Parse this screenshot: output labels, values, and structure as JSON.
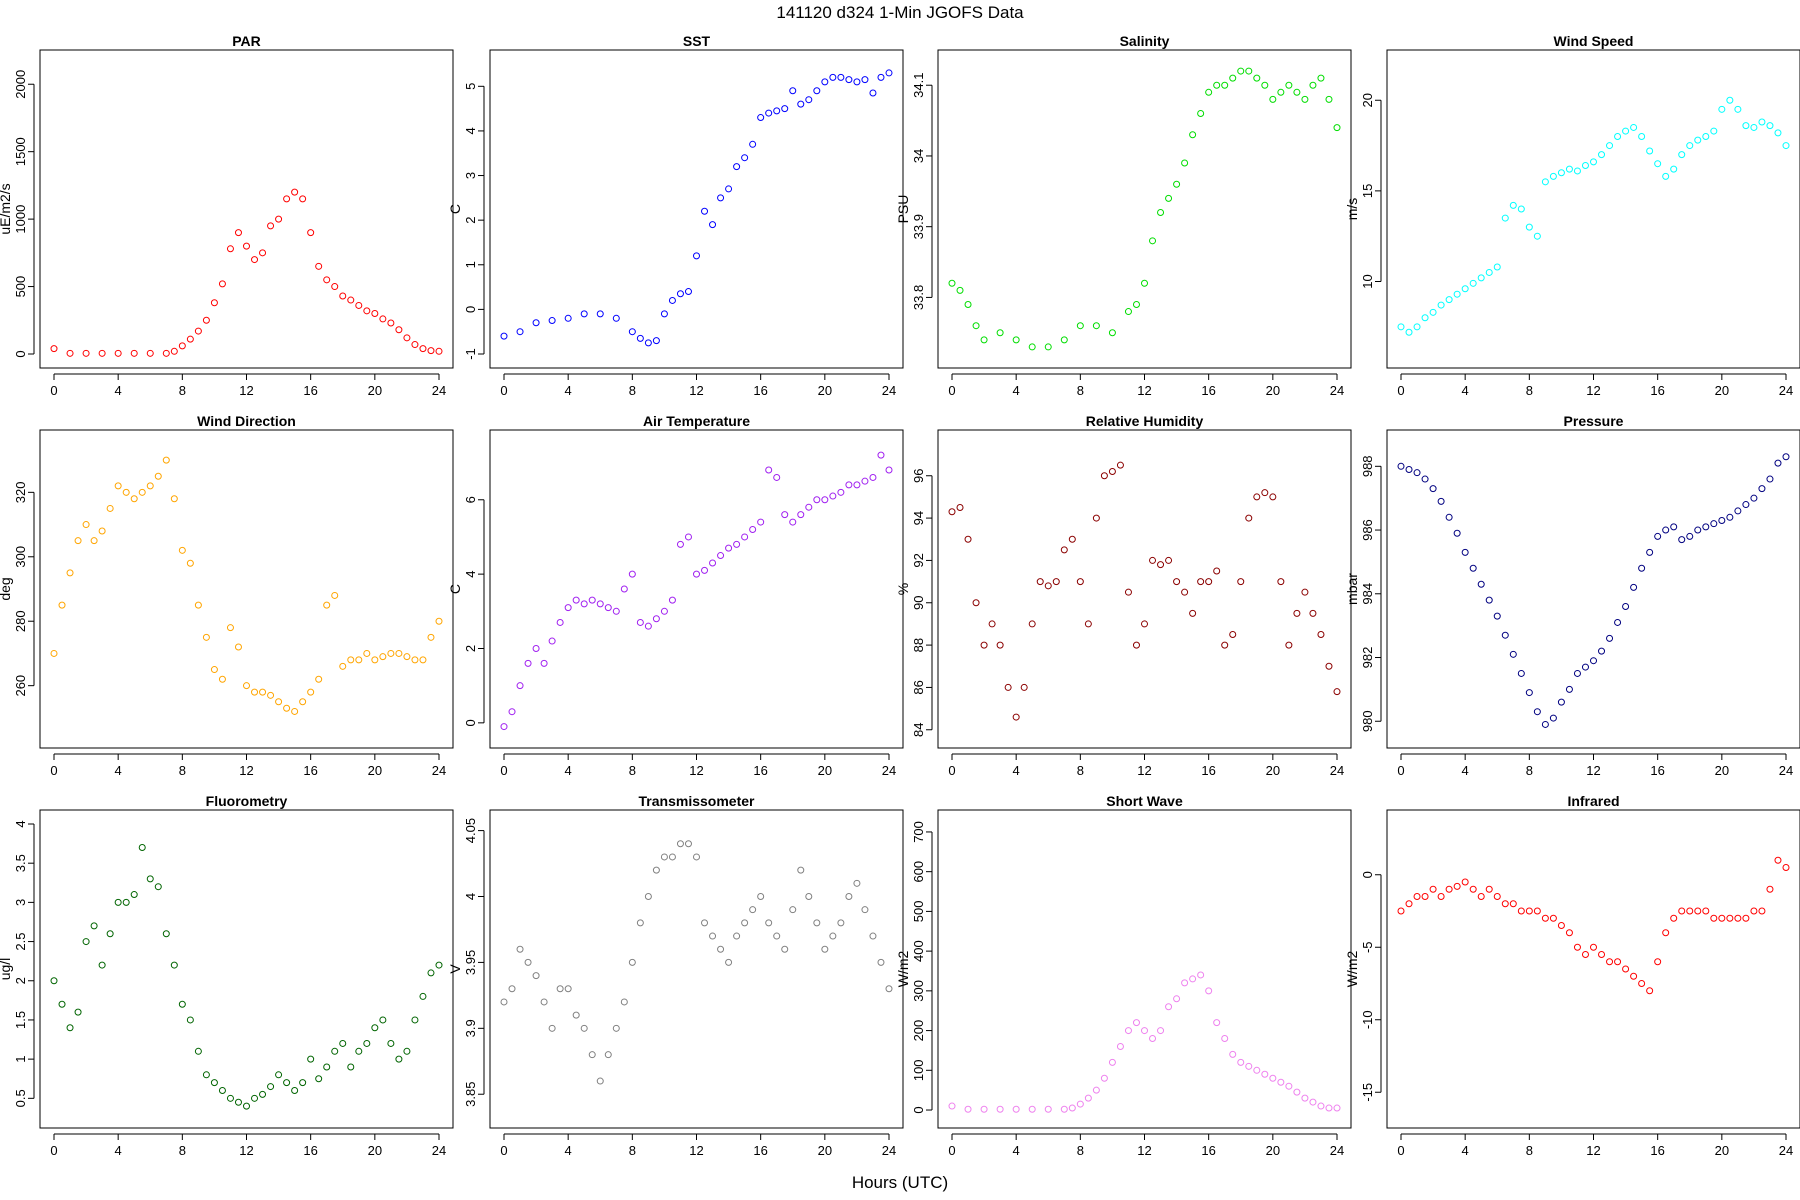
{
  "figure": {
    "title": "141120   d324   1-Min  JGOFS Data",
    "xlabel": "Hours (UTC)"
  },
  "chart_data": [
    {
      "type": "scatter",
      "title": "PAR",
      "ylabel": "uE/m2/s",
      "color": "#ff0000",
      "xlim": [
        0,
        24
      ],
      "ylim": [
        0,
        2150
      ],
      "xticks": [
        0,
        4,
        8,
        12,
        16,
        20,
        24
      ],
      "yticks": [
        0,
        500,
        1000,
        1500,
        2000
      ],
      "x": [
        0,
        1,
        2,
        3,
        4,
        5,
        6,
        7,
        7.5,
        8,
        8.5,
        9,
        9.5,
        10,
        10.5,
        11,
        11.5,
        12,
        12.5,
        13,
        13.5,
        14,
        14.5,
        15,
        15.5,
        16,
        16.5,
        17,
        17.5,
        18,
        18.5,
        19,
        19.5,
        20,
        20.5,
        21,
        21.5,
        22,
        22.5,
        23,
        23.5,
        24
      ],
      "y": [
        40,
        5,
        5,
        5,
        5,
        5,
        5,
        5,
        20,
        60,
        110,
        170,
        250,
        380,
        520,
        780,
        900,
        800,
        700,
        750,
        950,
        1000,
        1150,
        1200,
        1150,
        900,
        650,
        550,
        500,
        430,
        400,
        360,
        320,
        300,
        260,
        230,
        180,
        120,
        70,
        40,
        25,
        20
      ]
    },
    {
      "type": "scatter",
      "title": "SST",
      "ylabel": "C",
      "color": "#0000ff",
      "xlim": [
        0,
        24
      ],
      "ylim": [
        -1,
        5.5
      ],
      "xticks": [
        0,
        4,
        8,
        12,
        16,
        20,
        24
      ],
      "yticks": [
        -1,
        0,
        1,
        2,
        3,
        4,
        5
      ],
      "x": [
        0,
        1,
        2,
        3,
        4,
        5,
        6,
        7,
        8,
        8.5,
        9,
        9.5,
        10,
        10.5,
        11,
        11.5,
        12,
        12.5,
        13,
        13.5,
        14,
        14.5,
        15,
        15.5,
        16,
        16.5,
        17,
        17.5,
        18,
        18.5,
        19,
        19.5,
        20,
        20.5,
        21,
        21.5,
        22,
        22.5,
        23,
        23.5,
        24
      ],
      "y": [
        -0.6,
        -0.5,
        -0.3,
        -0.25,
        -0.2,
        -0.1,
        -0.1,
        -0.2,
        -0.5,
        -0.65,
        -0.75,
        -0.7,
        -0.1,
        0.2,
        0.35,
        0.4,
        1.2,
        2.2,
        1.9,
        2.5,
        2.7,
        3.2,
        3.4,
        3.7,
        4.3,
        4.4,
        4.45,
        4.5,
        4.9,
        4.6,
        4.7,
        4.9,
        5.1,
        5.2,
        5.2,
        5.15,
        5.1,
        5.15,
        4.85,
        5.2,
        5.3
      ]
    },
    {
      "type": "scatter",
      "title": "Salinity",
      "ylabel": "PSU",
      "color": "#00dd00",
      "xlim": [
        0,
        24
      ],
      "ylim": [
        33.72,
        34.13
      ],
      "xticks": [
        0,
        4,
        8,
        12,
        16,
        20,
        24
      ],
      "yticks": [
        33.8,
        33.9,
        34.0,
        34.1
      ],
      "x": [
        0,
        0.5,
        1,
        1.5,
        2,
        3,
        4,
        5,
        6,
        7,
        8,
        9,
        10,
        11,
        11.5,
        12,
        12.5,
        13,
        13.5,
        14,
        14.5,
        15,
        15.5,
        16,
        16.5,
        17,
        17.5,
        18,
        18.5,
        19,
        19.5,
        20,
        20.5,
        21,
        21.5,
        22,
        22.5,
        23,
        23.5,
        24
      ],
      "y": [
        33.82,
        33.81,
        33.79,
        33.76,
        33.74,
        33.75,
        33.74,
        33.73,
        33.73,
        33.74,
        33.76,
        33.76,
        33.75,
        33.78,
        33.79,
        33.82,
        33.88,
        33.92,
        33.94,
        33.96,
        33.99,
        34.03,
        34.06,
        34.09,
        34.1,
        34.1,
        34.11,
        34.12,
        34.12,
        34.11,
        34.1,
        34.08,
        34.09,
        34.1,
        34.09,
        34.08,
        34.1,
        34.11,
        34.08,
        34.04
      ]
    },
    {
      "type": "scatter",
      "title": "Wind Speed",
      "ylabel": "m/s",
      "color": "#00ffff",
      "xlim": [
        0,
        24
      ],
      "ylim": [
        6,
        22
      ],
      "xticks": [
        0,
        4,
        8,
        12,
        16,
        20,
        24
      ],
      "yticks": [
        10,
        15,
        20
      ],
      "x": [
        0,
        0.5,
        1,
        1.5,
        2,
        2.5,
        3,
        3.5,
        4,
        4.5,
        5,
        5.5,
        6,
        6.5,
        7,
        7.5,
        8,
        8.5,
        9,
        9.5,
        10,
        10.5,
        11,
        11.5,
        12,
        12.5,
        13,
        13.5,
        14,
        14.5,
        15,
        15.5,
        16,
        16.5,
        17,
        17.5,
        18,
        18.5,
        19,
        19.5,
        20,
        20.5,
        21,
        21.5,
        22,
        22.5,
        23,
        23.5,
        24
      ],
      "y": [
        7.5,
        7.2,
        7.5,
        8,
        8.3,
        8.7,
        9,
        9.3,
        9.6,
        9.9,
        10.2,
        10.5,
        10.8,
        13.5,
        14.2,
        14,
        13,
        12.5,
        15.5,
        15.8,
        16,
        16.2,
        16.1,
        16.4,
        16.6,
        17,
        17.5,
        18,
        18.3,
        18.5,
        18,
        17.2,
        16.5,
        15.8,
        16.2,
        17,
        17.5,
        17.8,
        18,
        18.3,
        19.5,
        20,
        19.5,
        18.6,
        18.5,
        18.8,
        18.6,
        18.2,
        17.5
      ]
    },
    {
      "type": "scatter",
      "title": "Wind Direction",
      "ylabel": "deg",
      "color": "#ffa500",
      "xlim": [
        0,
        24
      ],
      "ylim": [
        245,
        335
      ],
      "xticks": [
        0,
        4,
        8,
        12,
        16,
        20,
        24
      ],
      "yticks": [
        260,
        280,
        300,
        320
      ],
      "x": [
        0,
        0.5,
        1,
        1.5,
        2,
        2.5,
        3,
        3.5,
        4,
        4.5,
        5,
        5.5,
        6,
        6.5,
        7,
        7.5,
        8,
        8.5,
        9,
        9.5,
        10,
        10.5,
        11,
        11.5,
        12,
        12.5,
        13,
        13.5,
        14,
        14.5,
        15,
        15.5,
        16,
        16.5,
        17,
        17.5,
        18,
        18.5,
        19,
        19.5,
        20,
        20.5,
        21,
        21.5,
        22,
        22.5,
        23,
        23.5,
        24
      ],
      "y": [
        270,
        285,
        295,
        305,
        310,
        305,
        308,
        315,
        322,
        320,
        318,
        320,
        322,
        325,
        330,
        318,
        302,
        298,
        285,
        275,
        265,
        262,
        278,
        272,
        260,
        258,
        258,
        257,
        255,
        253,
        252,
        255,
        258,
        262,
        285,
        288,
        266,
        268,
        268,
        270,
        268,
        269,
        270,
        270,
        269,
        268,
        268,
        275,
        280
      ]
    },
    {
      "type": "scatter",
      "title": "Air Temperature",
      "ylabel": "C",
      "color": "#a020f0",
      "xlim": [
        0,
        24
      ],
      "ylim": [
        -0.3,
        7.5
      ],
      "xticks": [
        0,
        4,
        8,
        12,
        16,
        20,
        24
      ],
      "yticks": [
        0,
        2,
        4,
        6
      ],
      "x": [
        0,
        0.5,
        1,
        1.5,
        2,
        2.5,
        3,
        3.5,
        4,
        4.5,
        5,
        5.5,
        6,
        6.5,
        7,
        7.5,
        8,
        8.5,
        9,
        9.5,
        10,
        10.5,
        11,
        11.5,
        12,
        12.5,
        13,
        13.5,
        14,
        14.5,
        15,
        15.5,
        16,
        16.5,
        17,
        17.5,
        18,
        18.5,
        19,
        19.5,
        20,
        20.5,
        21,
        21.5,
        22,
        22.5,
        23,
        23.5,
        24
      ],
      "y": [
        -0.1,
        0.3,
        1,
        1.6,
        2,
        1.6,
        2.2,
        2.7,
        3.1,
        3.3,
        3.2,
        3.3,
        3.2,
        3.1,
        3,
        3.6,
        4,
        2.7,
        2.6,
        2.8,
        3,
        3.3,
        4.8,
        5,
        4,
        4.1,
        4.3,
        4.5,
        4.7,
        4.8,
        5,
        5.2,
        5.4,
        6.8,
        6.6,
        5.6,
        5.4,
        5.6,
        5.8,
        6,
        6,
        6.1,
        6.2,
        6.4,
        6.4,
        6.5,
        6.6,
        7.2,
        6.8
      ]
    },
    {
      "type": "scatter",
      "title": "Relative Humidity",
      "ylabel": "%",
      "color": "#8b0000",
      "xlim": [
        0,
        24
      ],
      "ylim": [
        83.8,
        97.5
      ],
      "xticks": [
        0,
        4,
        8,
        12,
        16,
        20,
        24
      ],
      "yticks": [
        84,
        86,
        88,
        90,
        92,
        94,
        96
      ],
      "x": [
        0,
        0.5,
        1,
        1.5,
        2,
        2.5,
        3,
        3.5,
        4,
        4.5,
        5,
        5.5,
        6,
        6.5,
        7,
        7.5,
        8,
        8.5,
        9,
        9.5,
        10,
        10.5,
        11,
        11.5,
        12,
        12.5,
        13,
        13.5,
        14,
        14.5,
        15,
        15.5,
        16,
        16.5,
        17,
        17.5,
        18,
        18.5,
        19,
        19.5,
        20,
        20.5,
        21,
        21.5,
        22,
        22.5,
        23,
        23.5,
        24
      ],
      "y": [
        94.3,
        94.5,
        93,
        90,
        88,
        89,
        88,
        86,
        84.6,
        86,
        89,
        91,
        90.8,
        91,
        92.5,
        93,
        91,
        89,
        94,
        96,
        96.2,
        96.5,
        90.5,
        88,
        89,
        92,
        91.8,
        92,
        91,
        90.5,
        89.5,
        91,
        91,
        91.5,
        88,
        88.5,
        91,
        94,
        95,
        95.2,
        95,
        91,
        88,
        89.5,
        90.5,
        89.5,
        88.5,
        87,
        85.8
      ]
    },
    {
      "type": "scatter",
      "title": "Pressure",
      "ylabel": "mbar",
      "color": "#000080",
      "xlim": [
        0,
        24
      ],
      "ylim": [
        979.6,
        988.7
      ],
      "xticks": [
        0,
        4,
        8,
        12,
        16,
        20,
        24
      ],
      "yticks": [
        980,
        982,
        984,
        986,
        988
      ],
      "x": [
        0,
        0.5,
        1,
        1.5,
        2,
        2.5,
        3,
        3.5,
        4,
        4.5,
        5,
        5.5,
        6,
        6.5,
        7,
        7.5,
        8,
        8.5,
        9,
        9.5,
        10,
        10.5,
        11,
        11.5,
        12,
        12.5,
        13,
        13.5,
        14,
        14.5,
        15,
        15.5,
        16,
        16.5,
        17,
        17.5,
        18,
        18.5,
        19,
        19.5,
        20,
        20.5,
        21,
        21.5,
        22,
        22.5,
        23,
        23.5,
        24
      ],
      "y": [
        988,
        987.9,
        987.8,
        987.6,
        987.3,
        986.9,
        986.4,
        985.9,
        985.3,
        984.8,
        984.3,
        983.8,
        983.3,
        982.7,
        982.1,
        981.5,
        980.9,
        980.3,
        979.9,
        980.1,
        980.6,
        981,
        981.5,
        981.7,
        981.9,
        982.2,
        982.6,
        983.1,
        983.6,
        984.2,
        984.8,
        985.3,
        985.8,
        986,
        986.1,
        985.7,
        985.8,
        986,
        986.1,
        986.2,
        986.3,
        986.4,
        986.6,
        986.8,
        987,
        987.3,
        987.6,
        988.1,
        988.3
      ]
    },
    {
      "type": "scatter",
      "title": "Fluorometry",
      "ylabel": "ug/l",
      "color": "#006400",
      "xlim": [
        0,
        24
      ],
      "ylim": [
        0.3,
        4.0
      ],
      "xticks": [
        0,
        4,
        8,
        12,
        16,
        20,
        24
      ],
      "yticks": [
        0.5,
        1.0,
        1.5,
        2.0,
        2.5,
        3.0,
        3.5,
        4.0
      ],
      "x": [
        0,
        0.5,
        1,
        1.5,
        2,
        2.5,
        3,
        3.5,
        4,
        4.5,
        5,
        5.5,
        6,
        6.5,
        7,
        7.5,
        8,
        8.5,
        9,
        9.5,
        10,
        10.5,
        11,
        11.5,
        12,
        12.5,
        13,
        13.5,
        14,
        14.5,
        15,
        15.5,
        16,
        16.5,
        17,
        17.5,
        18,
        18.5,
        19,
        19.5,
        20,
        20.5,
        21,
        21.5,
        22,
        22.5,
        23,
        23.5,
        24
      ],
      "y": [
        2,
        1.7,
        1.4,
        1.6,
        2.5,
        2.7,
        2.2,
        2.6,
        3,
        3,
        3.1,
        3.7,
        3.3,
        3.2,
        2.6,
        2.2,
        1.7,
        1.5,
        1.1,
        0.8,
        0.7,
        0.6,
        0.5,
        0.45,
        0.4,
        0.5,
        0.55,
        0.65,
        0.8,
        0.7,
        0.6,
        0.7,
        1,
        0.75,
        0.9,
        1.1,
        1.2,
        0.9,
        1.1,
        1.2,
        1.4,
        1.5,
        1.2,
        1,
        1.1,
        1.5,
        1.8,
        2.1,
        2.2
      ]
    },
    {
      "type": "scatter",
      "title": "Transmissometer",
      "ylabel": "V",
      "color": "#808080",
      "xlim": [
        0,
        24
      ],
      "ylim": [
        3.835,
        4.055
      ],
      "xticks": [
        0,
        4,
        8,
        12,
        16,
        20,
        24
      ],
      "yticks": [
        3.85,
        3.9,
        3.95,
        4.0,
        4.05
      ],
      "x": [
        0,
        0.5,
        1,
        1.5,
        2,
        2.5,
        3,
        3.5,
        4,
        4.5,
        5,
        5.5,
        6,
        6.5,
        7,
        7.5,
        8,
        8.5,
        9,
        9.5,
        10,
        10.5,
        11,
        11.5,
        12,
        12.5,
        13,
        13.5,
        14,
        14.5,
        15,
        15.5,
        16,
        16.5,
        17,
        17.5,
        18,
        18.5,
        19,
        19.5,
        20,
        20.5,
        21,
        21.5,
        22,
        22.5,
        23,
        23.5,
        24
      ],
      "y": [
        3.92,
        3.93,
        3.96,
        3.95,
        3.94,
        3.92,
        3.9,
        3.93,
        3.93,
        3.91,
        3.9,
        3.88,
        3.86,
        3.88,
        3.9,
        3.92,
        3.95,
        3.98,
        4,
        4.02,
        4.03,
        4.03,
        4.04,
        4.04,
        4.03,
        3.98,
        3.97,
        3.96,
        3.95,
        3.97,
        3.98,
        3.99,
        4,
        3.98,
        3.97,
        3.96,
        3.99,
        4.02,
        4,
        3.98,
        3.96,
        3.97,
        3.98,
        4,
        4.01,
        3.99,
        3.97,
        3.95,
        3.93
      ]
    },
    {
      "type": "scatter",
      "title": "Short Wave",
      "ylabel": "W/m2",
      "color": "#ee82ee",
      "xlim": [
        0,
        24
      ],
      "ylim": [
        -10,
        720
      ],
      "xticks": [
        0,
        4,
        8,
        12,
        16,
        20,
        24
      ],
      "yticks": [
        0,
        100,
        200,
        300,
        400,
        500,
        600,
        700
      ],
      "x": [
        0,
        1,
        2,
        3,
        4,
        5,
        6,
        7,
        7.5,
        8,
        8.5,
        9,
        9.5,
        10,
        10.5,
        11,
        11.5,
        12,
        12.5,
        13,
        13.5,
        14,
        14.5,
        15,
        15.5,
        16,
        16.5,
        17,
        17.5,
        18,
        18.5,
        19,
        19.5,
        20,
        20.5,
        21,
        21.5,
        22,
        22.5,
        23,
        23.5,
        24
      ],
      "y": [
        10,
        2,
        2,
        2,
        2,
        2,
        2,
        2,
        5,
        15,
        30,
        50,
        80,
        120,
        160,
        200,
        220,
        200,
        180,
        200,
        260,
        280,
        320,
        330,
        340,
        300,
        220,
        180,
        140,
        120,
        110,
        100,
        90,
        80,
        70,
        60,
        45,
        30,
        20,
        10,
        5,
        5
      ]
    },
    {
      "type": "scatter",
      "title": "Infrared",
      "ylabel": "W/m2",
      "color": "#ff0000",
      "xlim": [
        0,
        24
      ],
      "ylim": [
        -16.5,
        3.5
      ],
      "xticks": [
        0,
        4,
        8,
        12,
        16,
        20,
        24
      ],
      "yticks": [
        -15,
        -10,
        -5,
        0
      ],
      "x": [
        0,
        0.5,
        1,
        1.5,
        2,
        2.5,
        3,
        3.5,
        4,
        4.5,
        5,
        5.5,
        6,
        6.5,
        7,
        7.5,
        8,
        8.5,
        9,
        9.5,
        10,
        10.5,
        11,
        11.5,
        12,
        12.5,
        13,
        13.5,
        14,
        14.5,
        15,
        15.5,
        16,
        16.5,
        17,
        17.5,
        18,
        18.5,
        19,
        19.5,
        20,
        20.5,
        21,
        21.5,
        22,
        22.5,
        23,
        23.5,
        24
      ],
      "y": [
        -2.5,
        -2,
        -1.5,
        -1.5,
        -1,
        -1.5,
        -1,
        -0.8,
        -0.5,
        -1,
        -1.5,
        -1,
        -1.5,
        -2,
        -2,
        -2.5,
        -2.5,
        -2.5,
        -3,
        -3,
        -3.5,
        -4,
        -5,
        -5.5,
        -5,
        -5.5,
        -6,
        -6,
        -6.5,
        -7,
        -7.5,
        -8,
        -6,
        -4,
        -3,
        -2.5,
        -2.5,
        -2.5,
        -2.5,
        -3,
        -3,
        -3,
        -3,
        -3,
        -2.5,
        -2.5,
        -1,
        1,
        0.5
      ]
    }
  ]
}
